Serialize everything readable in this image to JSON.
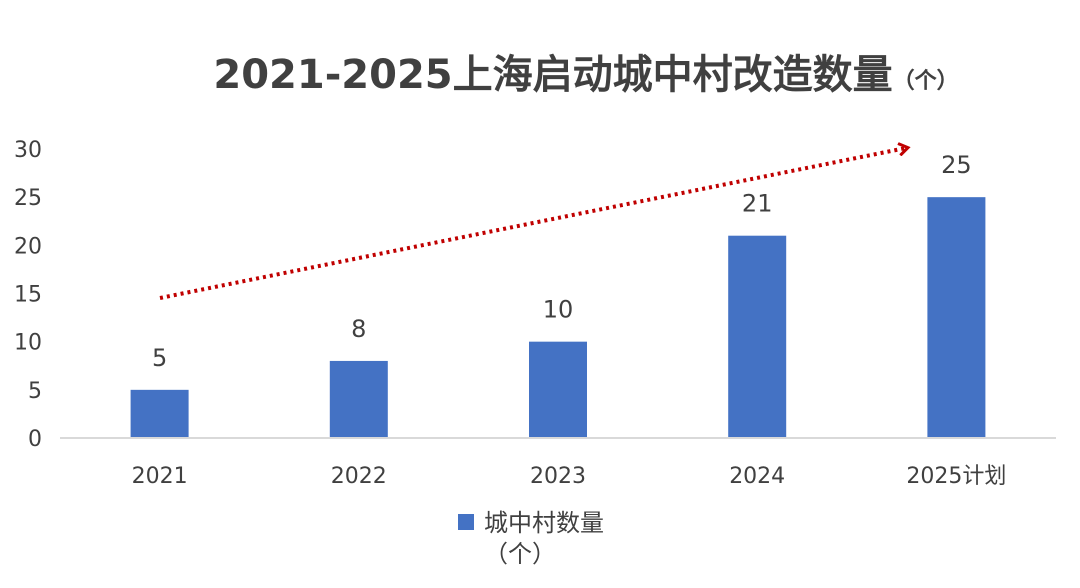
{
  "chart_data": {
    "type": "bar",
    "title": "2021-2025上海启动城中村改造数量",
    "title_unit": "（个）",
    "categories": [
      "2021",
      "2022",
      "2023",
      "2024",
      "2025计划"
    ],
    "series": [
      {
        "name": "城中村数量",
        "name_unit": "（个）",
        "values": [
          5,
          8,
          10,
          21,
          25
        ]
      }
    ],
    "data_labels": [
      "5",
      "8",
      "10",
      "21",
      "25"
    ],
    "yticks": [
      "0",
      "5",
      "10",
      "15",
      "20",
      "25",
      "30"
    ],
    "ylim": [
      0,
      30
    ],
    "grid": false,
    "legend_position": "bottom",
    "colors": {
      "bar": "#4472C4",
      "trend_arrow": "#C00000",
      "axis": "#D9D9D9",
      "text": "#404040"
    }
  }
}
